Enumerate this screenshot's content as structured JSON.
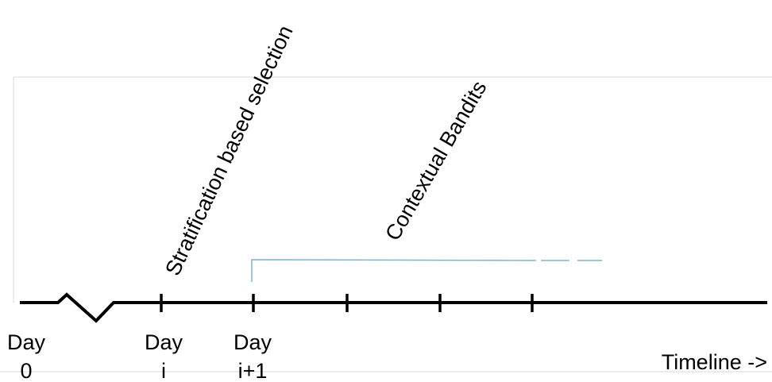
{
  "diagram": {
    "phases": {
      "stratification": "Stratification based selection",
      "bandits": "Contextual Bandits"
    },
    "days": [
      {
        "line1": "Day",
        "line2": "0"
      },
      {
        "line1": "Day",
        "line2": "i"
      },
      {
        "line1": "Day",
        "line2": "i+1"
      }
    ],
    "timeline_label": "Timeline ->"
  },
  "colors": {
    "timeline": "#000000",
    "bracket": "#7fb2d6",
    "frame": "#d9d9d9"
  }
}
